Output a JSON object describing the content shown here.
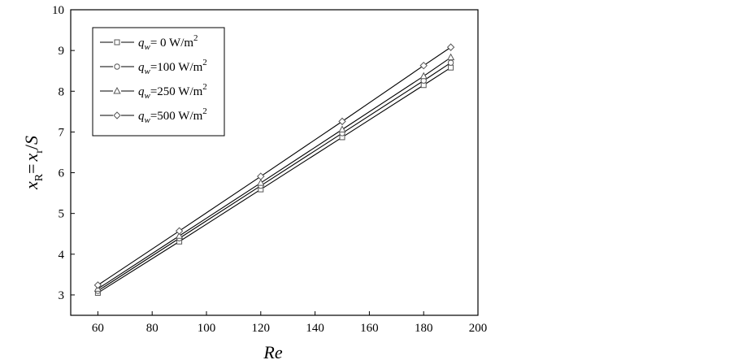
{
  "chart_data": {
    "type": "line",
    "title": "",
    "xlabel": "Re",
    "ylabel_parts": {
      "x1": "x",
      "sub1": "R",
      "eq": "=",
      "x2": "x",
      "sub2": "r",
      "slash": "/",
      "s": "S"
    },
    "xlim": [
      50,
      200
    ],
    "ylim": [
      2.5,
      10
    ],
    "xticks": [
      60,
      80,
      100,
      120,
      140,
      160,
      180,
      200
    ],
    "yticks": [
      3,
      4,
      5,
      6,
      7,
      8,
      9,
      10
    ],
    "grid": false,
    "legend_position": "top-left",
    "x": [
      60,
      90,
      120,
      150,
      180,
      190
    ],
    "series": [
      {
        "name_parts": {
          "q": "q",
          "sub": "w",
          "val": "=    0 W/m",
          "sup": "2"
        },
        "marker": "square",
        "values": [
          3.05,
          4.31,
          5.59,
          6.87,
          8.15,
          8.58
        ]
      },
      {
        "name_parts": {
          "q": "q",
          "sub": "w",
          "val": "=100 W/m",
          "sup": "2"
        },
        "marker": "circle",
        "values": [
          3.1,
          4.39,
          5.68,
          6.97,
          8.26,
          8.7
        ]
      },
      {
        "name_parts": {
          "q": "q",
          "sub": "w",
          "val": "=250 W/m",
          "sup": "2"
        },
        "marker": "triangle",
        "values": [
          3.15,
          4.45,
          5.75,
          7.06,
          8.37,
          8.83
        ]
      },
      {
        "name_parts": {
          "q": "q",
          "sub": "w",
          "val": "=500 W/m",
          "sup": "2"
        },
        "marker": "diamond",
        "values": [
          3.24,
          4.57,
          5.91,
          7.26,
          8.63,
          9.08
        ]
      }
    ]
  }
}
